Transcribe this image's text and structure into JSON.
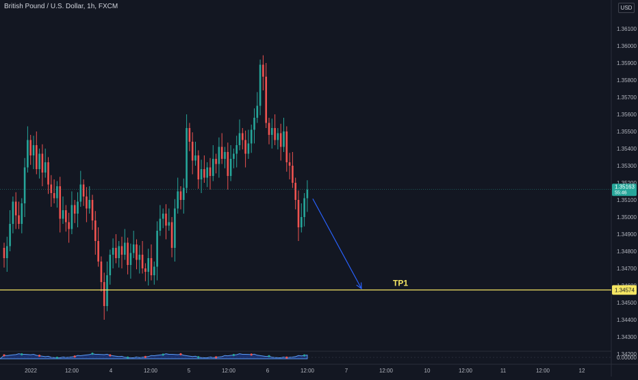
{
  "header": {
    "symbol_title": "British Pound / U.S. Dollar, 1h, FXCM",
    "currency": "USD"
  },
  "colors": {
    "background": "#131722",
    "bull": "#26a69a",
    "bear": "#ef5350",
    "text": "#b2b5be",
    "tp_line": "#f5e663",
    "arrow": "#2962ff",
    "price_tag": "#26a69a"
  },
  "chart_data": {
    "type": "candlestick",
    "x_ticks": [
      "2022",
      "12:00",
      "4",
      "12:00",
      "5",
      "12:00",
      "6",
      "12:00",
      "7",
      "12:00",
      "10",
      "12:00",
      "11",
      "12:00",
      "12"
    ],
    "y_ticks": [
      "1.36100",
      "1.36000",
      "1.35900",
      "1.35800",
      "1.35700",
      "1.35600",
      "1.35500",
      "1.35400",
      "1.35300",
      "1.35200",
      "1.35100",
      "1.35000",
      "1.34900",
      "1.34800",
      "1.34700",
      "1.34600",
      "1.34500",
      "1.34400",
      "1.34300",
      "1.34200"
    ],
    "ylim": [
      1.3418,
      1.3618
    ],
    "closes": [
      1.3476,
      1.3483,
      1.3496,
      1.3509,
      1.3501,
      1.3496,
      1.3508,
      1.3529,
      1.3545,
      1.3536,
      1.3542,
      1.3528,
      1.3537,
      1.3526,
      1.3532,
      1.3519,
      1.3514,
      1.3511,
      1.3518,
      1.3499,
      1.3504,
      1.3497,
      1.3493,
      1.3507,
      1.3502,
      1.3509,
      1.3519,
      1.3512,
      1.3505,
      1.351,
      1.3498,
      1.3486,
      1.3474,
      1.3462,
      1.3448,
      1.3466,
      1.3478,
      1.3482,
      1.3476,
      1.3483,
      1.3478,
      1.3485,
      1.3472,
      1.3479,
      1.3484,
      1.3475,
      1.3478,
      1.347,
      1.3468,
      1.3476,
      1.3466,
      1.3471,
      1.3492,
      1.3499,
      1.3502,
      1.3495,
      1.3497,
      1.3482,
      1.3505,
      1.3515,
      1.351,
      1.3517,
      1.3552,
      1.3544,
      1.3533,
      1.3536,
      1.3522,
      1.3528,
      1.3523,
      1.3529,
      1.3524,
      1.3534,
      1.3531,
      1.3541,
      1.3534,
      1.3538,
      1.3524,
      1.3534,
      1.3537,
      1.3542,
      1.3549,
      1.3545,
      1.3537,
      1.3543,
      1.3551,
      1.3558,
      1.3565,
      1.3589,
      1.3582,
      1.3555,
      1.3548,
      1.3552,
      1.3545,
      1.3549,
      1.3541,
      1.355,
      1.3532,
      1.353,
      1.352,
      1.351,
      1.3494,
      1.35,
      1.3511,
      1.3516
    ],
    "last_price": "1.35163",
    "countdown": "55:46",
    "tp_level": "1.34574",
    "tp_label": "TP1",
    "indicator_tick": "0.00000"
  }
}
